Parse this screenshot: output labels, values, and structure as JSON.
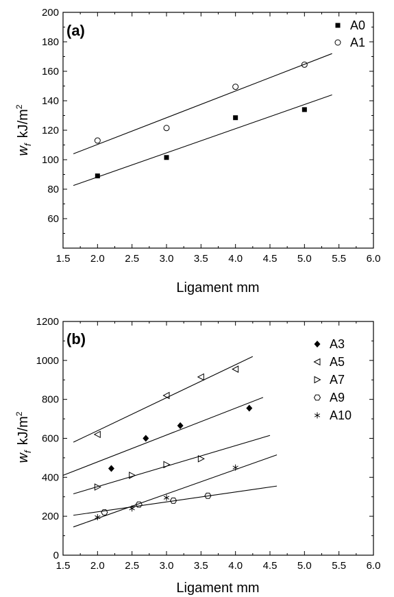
{
  "chart_data": [
    {
      "type": "scatter",
      "panel_label": "(a)",
      "xlabel": "Ligament mm",
      "ylabel_main": "w",
      "ylabel_sub": "f",
      "ylabel_unit": "kJ/m",
      "ylabel_sup": "2",
      "xlim": [
        1.5,
        6.0
      ],
      "ylim": [
        40,
        200
      ],
      "xticks": [
        1.5,
        2.0,
        2.5,
        3.0,
        3.5,
        4.0,
        4.5,
        5.0,
        5.5,
        6.0
      ],
      "xtick_labels": [
        "1.5",
        "2.0",
        "2.5",
        "3.0",
        "3.5",
        "4.0",
        "4.5",
        "5.0",
        "5.5",
        "6.0"
      ],
      "yticks": [
        60,
        80,
        100,
        120,
        140,
        160,
        180,
        200
      ],
      "ytick_labels": [
        "60",
        "80",
        "100",
        "120",
        "140",
        "160",
        "180",
        "200"
      ],
      "legend_position": "top-right",
      "series": [
        {
          "name": "A0",
          "marker": "filled-square",
          "x": [
            2.0,
            3.0,
            4.0,
            5.0
          ],
          "y": [
            89,
            101.5,
            128.5,
            134
          ],
          "fit": {
            "x": [
              1.65,
              5.4
            ],
            "y": [
              82.5,
              144
            ]
          }
        },
        {
          "name": "A1",
          "marker": "open-circle",
          "x": [
            2.0,
            3.0,
            4.0,
            5.0
          ],
          "y": [
            113,
            121.5,
            149.5,
            164.5
          ],
          "fit": {
            "x": [
              1.65,
              5.4
            ],
            "y": [
              104,
              172
            ]
          }
        }
      ]
    },
    {
      "type": "scatter",
      "panel_label": "(b)",
      "xlabel": "Ligament mm",
      "ylabel_main": "w",
      "ylabel_sub": "f",
      "ylabel_unit": "kJ/m",
      "ylabel_sup": "2",
      "xlim": [
        1.5,
        6.0
      ],
      "ylim": [
        0,
        1200
      ],
      "xticks": [
        1.5,
        2.0,
        2.5,
        3.0,
        3.5,
        4.0,
        4.5,
        5.0,
        5.5,
        6.0
      ],
      "xtick_labels": [
        "1.5",
        "2.0",
        "2.5",
        "3.0",
        "3.5",
        "4.0",
        "4.5",
        "5.0",
        "5.5",
        "6.0"
      ],
      "yticks": [
        0,
        200,
        400,
        600,
        800,
        1000,
        1200
      ],
      "ytick_labels": [
        "0",
        "200",
        "400",
        "600",
        "800",
        "1000",
        "1200"
      ],
      "legend_position": "top-right",
      "series": [
        {
          "name": "A3",
          "marker": "filled-diamond",
          "x": [
            2.2,
            2.7,
            3.2,
            4.2
          ],
          "y": [
            445,
            600,
            665,
            755
          ],
          "fit": {
            "x": [
              1.5,
              4.4
            ],
            "y": [
              410,
              810
            ]
          }
        },
        {
          "name": "A5",
          "marker": "left-triangle",
          "x": [
            2.0,
            3.0,
            3.5,
            4.0
          ],
          "y": [
            620,
            820,
            915,
            955
          ],
          "fit": {
            "x": [
              1.65,
              4.25
            ],
            "y": [
              580,
              1020
            ]
          }
        },
        {
          "name": "A7",
          "marker": "right-triangle",
          "x": [
            2.0,
            2.5,
            3.0,
            3.5
          ],
          "y": [
            350,
            410,
            465,
            495
          ],
          "fit": {
            "x": [
              1.65,
              4.5
            ],
            "y": [
              315,
              615
            ]
          }
        },
        {
          "name": "A9",
          "marker": "open-hexagon",
          "x": [
            2.1,
            2.6,
            3.1,
            3.6
          ],
          "y": [
            220,
            260,
            280,
            305
          ],
          "fit": {
            "x": [
              1.65,
              4.6
            ],
            "y": [
              205,
              355
            ]
          }
        },
        {
          "name": "A10",
          "marker": "star",
          "x": [
            2.0,
            2.5,
            3.0,
            4.0
          ],
          "y": [
            195,
            240,
            295,
            450
          ],
          "fit": {
            "x": [
              1.65,
              4.6
            ],
            "y": [
              145,
              515
            ]
          }
        }
      ]
    }
  ]
}
